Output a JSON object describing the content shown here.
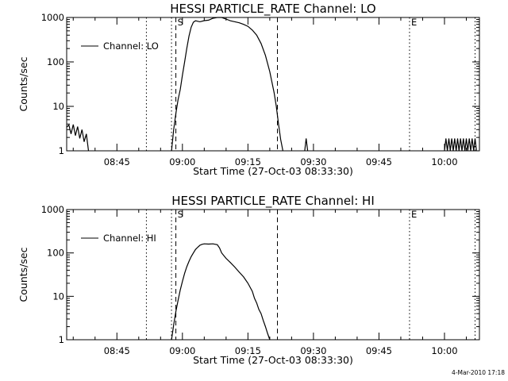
{
  "footer": {
    "date_stamp": "4-Mar-2010 17:18"
  },
  "chart_data": [
    {
      "type": "line",
      "title": "HESSI PARTICLE_RATE Channel: LO",
      "xlabel": "Start Time (27-Oct-03 08:33:30)",
      "ylabel": "Counts/sec",
      "yscale": "log",
      "ylim": [
        1,
        1000
      ],
      "xlim": [
        "08:33:30",
        "10:08:00"
      ],
      "x_ticks": [
        "08:45",
        "09:00",
        "09:15",
        "09:30",
        "09:45",
        "10:00"
      ],
      "y_ticks": [
        "1",
        "10",
        "100",
        "1000"
      ],
      "legend": {
        "position": "upper-left",
        "entries": [
          "Channel: LO"
        ]
      },
      "markers": [
        {
          "time": "08:51:45",
          "style": "dotted",
          "label": ""
        },
        {
          "time": "08:57:30",
          "style": "dotted",
          "label": ""
        },
        {
          "time": "08:58:30",
          "style": "dashed",
          "label": "S"
        },
        {
          "time": "09:21:45",
          "style": "dashed",
          "label": ""
        },
        {
          "time": "09:52:00",
          "style": "dotted",
          "label": "E"
        },
        {
          "time": "10:07:00",
          "style": "dotted",
          "label": ""
        }
      ],
      "series": [
        {
          "name": "Channel: LO",
          "points": [
            [
              "08:33:30",
              3.4
            ],
            [
              "08:34:00",
              3.8
            ],
            [
              "08:34:30",
              2.4
            ],
            [
              "08:35:00",
              3.9
            ],
            [
              "08:35:30",
              2.2
            ],
            [
              "08:36:00",
              3.5
            ],
            [
              "08:36:30",
              1.9
            ],
            [
              "08:37:00",
              3.0
            ],
            [
              "08:37:30",
              1.6
            ],
            [
              "08:38:00",
              2.4
            ],
            [
              "08:38:30",
              1.0
            ],
            [
              "08:57:30",
              1.0
            ],
            [
              "08:58:00",
              3.0
            ],
            [
              "08:58:30",
              7.0
            ],
            [
              "08:59:00",
              14
            ],
            [
              "08:59:30",
              24
            ],
            [
              "09:00:00",
              50
            ],
            [
              "09:00:30",
              100
            ],
            [
              "09:01:00",
              200
            ],
            [
              "09:01:30",
              380
            ],
            [
              "09:02:00",
              600
            ],
            [
              "09:02:30",
              780
            ],
            [
              "09:03:00",
              840
            ],
            [
              "09:04:00",
              800
            ],
            [
              "09:05:00",
              850
            ],
            [
              "09:06:00",
              870
            ],
            [
              "09:07:00",
              960
            ],
            [
              "09:08:00",
              1000
            ],
            [
              "09:09:00",
              1000
            ],
            [
              "09:10:00",
              920
            ],
            [
              "09:11:00",
              840
            ],
            [
              "09:12:00",
              800
            ],
            [
              "09:13:00",
              760
            ],
            [
              "09:14:00",
              700
            ],
            [
              "09:15:00",
              630
            ],
            [
              "09:16:00",
              520
            ],
            [
              "09:17:00",
              400
            ],
            [
              "09:18:00",
              260
            ],
            [
              "09:19:00",
              140
            ],
            [
              "09:20:00",
              60
            ],
            [
              "09:21:00",
              20
            ],
            [
              "09:21:30",
              10
            ],
            [
              "09:22:00",
              4
            ],
            [
              "09:22:30",
              1.8
            ],
            [
              "09:23:00",
              1.0
            ],
            [
              "09:28:00",
              1.0
            ],
            [
              "09:28:20",
              1.9
            ],
            [
              "09:28:40",
              1.0
            ],
            [
              "10:00:00",
              1.0
            ],
            [
              "10:00:20",
              1.9
            ],
            [
              "10:00:40",
              1.0
            ],
            [
              "10:01:00",
              1.9
            ],
            [
              "10:01:20",
              1.0
            ],
            [
              "10:01:40",
              1.9
            ],
            [
              "10:02:00",
              1.0
            ],
            [
              "10:02:20",
              1.9
            ],
            [
              "10:02:40",
              1.0
            ],
            [
              "10:03:00",
              1.9
            ],
            [
              "10:03:20",
              1.0
            ],
            [
              "10:03:40",
              1.9
            ],
            [
              "10:04:00",
              1.0
            ],
            [
              "10:04:20",
              1.9
            ],
            [
              "10:04:40",
              1.0
            ],
            [
              "10:05:00",
              1.9
            ],
            [
              "10:05:20",
              1.0
            ],
            [
              "10:05:40",
              1.9
            ],
            [
              "10:06:00",
              1.0
            ],
            [
              "10:06:20",
              1.9
            ],
            [
              "10:06:40",
              1.0
            ],
            [
              "10:07:00",
              1.9
            ],
            [
              "10:07:20",
              1.0
            ]
          ]
        }
      ]
    },
    {
      "type": "line",
      "title": "HESSI PARTICLE_RATE Channel: HI",
      "xlabel": "Start Time (27-Oct-03 08:33:30)",
      "ylabel": "Counts/sec",
      "yscale": "log",
      "ylim": [
        1,
        1000
      ],
      "xlim": [
        "08:33:30",
        "10:08:00"
      ],
      "x_ticks": [
        "08:45",
        "09:00",
        "09:15",
        "09:30",
        "09:45",
        "10:00"
      ],
      "y_ticks": [
        "1",
        "10",
        "100",
        "1000"
      ],
      "legend": {
        "position": "upper-left",
        "entries": [
          "Channel: HI"
        ]
      },
      "markers": [
        {
          "time": "08:51:45",
          "style": "dotted",
          "label": ""
        },
        {
          "time": "08:57:30",
          "style": "dotted",
          "label": ""
        },
        {
          "time": "08:58:30",
          "style": "dashed",
          "label": "S"
        },
        {
          "time": "09:21:45",
          "style": "dashed",
          "label": ""
        },
        {
          "time": "09:52:00",
          "style": "dotted",
          "label": "E"
        },
        {
          "time": "10:07:00",
          "style": "dotted",
          "label": ""
        }
      ],
      "series": [
        {
          "name": "Channel: HI",
          "points": [
            [
              "08:57:30",
              1.0
            ],
            [
              "08:58:00",
              2.2
            ],
            [
              "08:58:30",
              4.5
            ],
            [
              "08:59:00",
              8
            ],
            [
              "08:59:30",
              14
            ],
            [
              "09:00:00",
              22
            ],
            [
              "09:00:30",
              34
            ],
            [
              "09:01:00",
              48
            ],
            [
              "09:01:30",
              64
            ],
            [
              "09:02:00",
              82
            ],
            [
              "09:02:30",
              100
            ],
            [
              "09:03:00",
              120
            ],
            [
              "09:03:30",
              135
            ],
            [
              "09:04:00",
              150
            ],
            [
              "09:04:30",
              158
            ],
            [
              "09:05:00",
              162
            ],
            [
              "09:06:00",
              160
            ],
            [
              "09:07:00",
              162
            ],
            [
              "09:08:00",
              155
            ],
            [
              "09:08:30",
              130
            ],
            [
              "09:09:00",
              100
            ],
            [
              "09:10:00",
              75
            ],
            [
              "09:11:00",
              60
            ],
            [
              "09:12:00",
              47
            ],
            [
              "09:13:00",
              36
            ],
            [
              "09:14:00",
              28
            ],
            [
              "09:15:00",
              20
            ],
            [
              "09:16:00",
              13
            ],
            [
              "09:16:30",
              9
            ],
            [
              "09:17:00",
              7
            ],
            [
              "09:17:30",
              5
            ],
            [
              "09:18:00",
              4
            ],
            [
              "09:18:30",
              2.8
            ],
            [
              "09:19:00",
              2.0
            ],
            [
              "09:19:30",
              1.4
            ],
            [
              "09:20:00",
              1.0
            ]
          ]
        }
      ]
    }
  ]
}
